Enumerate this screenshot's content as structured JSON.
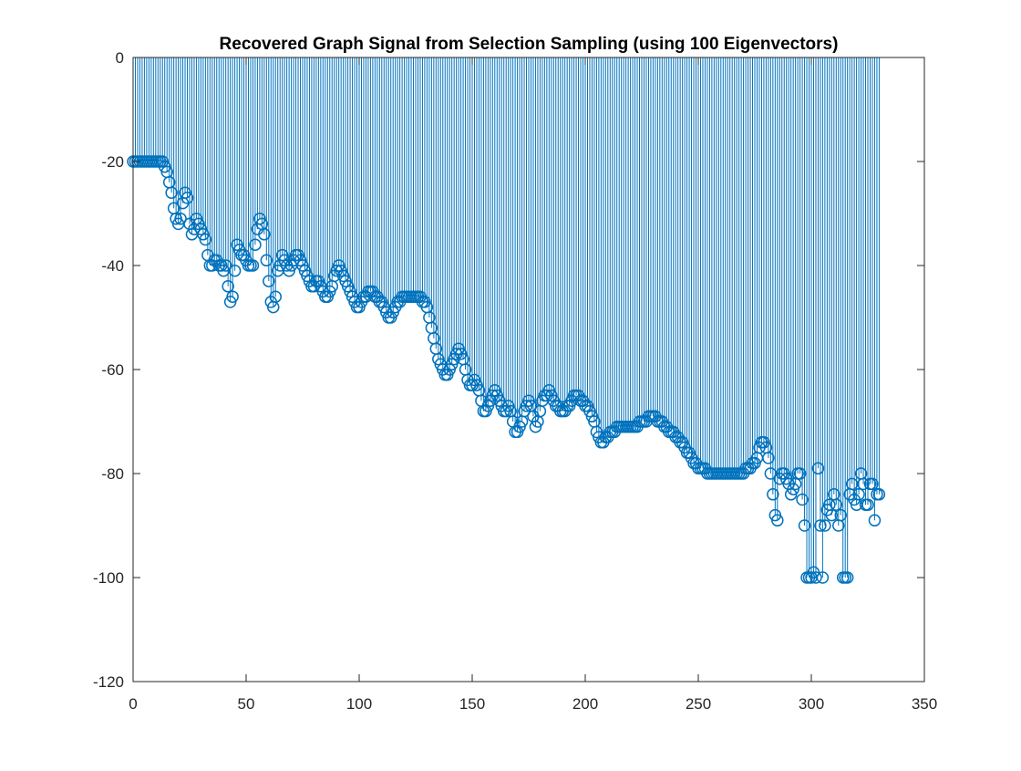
{
  "chart_data": {
    "type": "stem",
    "title": "Recovered Graph Signal from Selection Sampling (using 100 Eigenvectors)",
    "xlabel": "",
    "ylabel": "",
    "xlim": [
      0,
      350
    ],
    "ylim": [
      -120,
      0
    ],
    "xticks": [
      0,
      50,
      100,
      150,
      200,
      250,
      300,
      350
    ],
    "yticks": [
      0,
      -20,
      -40,
      -60,
      -80,
      -100,
      -120
    ],
    "xtick_labels": [
      "0",
      "50",
      "100",
      "150",
      "200",
      "250",
      "300",
      "350"
    ],
    "ytick_labels": [
      "0",
      "-20",
      "-40",
      "-60",
      "-80",
      "-100",
      "-120"
    ],
    "baseline": 0,
    "grid": false,
    "legend": "none",
    "color": "#0072BD",
    "x_start": 0,
    "values": [
      -20,
      -20,
      -20,
      -20,
      -20,
      -20,
      -20,
      -20,
      -20,
      -20,
      -20,
      -20,
      -20,
      -20,
      -21,
      -22,
      -24,
      -26,
      -29,
      -31,
      -32,
      -31,
      -28,
      -26,
      -27,
      -32,
      -34,
      -33,
      -31,
      -32,
      -33,
      -34,
      -35,
      -38,
      -40,
      -40,
      -39,
      -39,
      -40,
      -40,
      -41,
      -40,
      -44,
      -47,
      -46,
      -41,
      -36,
      -37,
      -38,
      -38,
      -39,
      -40,
      -40,
      -40,
      -36,
      -33,
      -31,
      -32,
      -34,
      -39,
      -43,
      -47,
      -48,
      -46,
      -41,
      -40,
      -38,
      -39,
      -40,
      -41,
      -40,
      -39,
      -38,
      -38,
      -39,
      -40,
      -41,
      -42,
      -43,
      -44,
      -44,
      -43,
      -43,
      -44,
      -45,
      -46,
      -46,
      -45,
      -44,
      -42,
      -41,
      -40,
      -41,
      -42,
      -43,
      -44,
      -45,
      -46,
      -47,
      -48,
      -48,
      -47,
      -46,
      -46,
      -45,
      -45,
      -45,
      -46,
      -46,
      -47,
      -47,
      -48,
      -49,
      -50,
      -50,
      -49,
      -48,
      -47,
      -47,
      -46,
      -46,
      -46,
      -46,
      -46,
      -46,
      -46,
      -46,
      -46,
      -47,
      -47,
      -48,
      -50,
      -52,
      -54,
      -56,
      -58,
      -59,
      -60,
      -61,
      -61,
      -60,
      -59,
      -58,
      -57,
      -56,
      -57,
      -58,
      -60,
      -62,
      -63,
      -63,
      -62,
      -63,
      -64,
      -66,
      -68,
      -68,
      -67,
      -66,
      -65,
      -64,
      -65,
      -66,
      -67,
      -68,
      -68,
      -67,
      -68,
      -70,
      -72,
      -72,
      -71,
      -70,
      -68,
      -67,
      -66,
      -67,
      -69,
      -71,
      -70,
      -68,
      -66,
      -65,
      -65,
      -64,
      -65,
      -66,
      -67,
      -67,
      -68,
      -68,
      -68,
      -67,
      -67,
      -66,
      -65,
      -65,
      -65,
      -66,
      -66,
      -67,
      -67,
      -68,
      -69,
      -70,
      -72,
      -73,
      -74,
      -74,
      -73,
      -73,
      -72,
      -72,
      -72,
      -71,
      -71,
      -71,
      -71,
      -71,
      -71,
      -71,
      -71,
      -71,
      -71,
      -70,
      -70,
      -70,
      -70,
      -69,
      -69,
      -69,
      -69,
      -70,
      -70,
      -70,
      -71,
      -71,
      -72,
      -72,
      -72,
      -73,
      -73,
      -74,
      -74,
      -75,
      -76,
      -76,
      -77,
      -78,
      -78,
      -79,
      -79,
      -79,
      -79,
      -80,
      -80,
      -80,
      -80,
      -80,
      -80,
      -80,
      -80,
      -80,
      -80,
      -80,
      -80,
      -80,
      -80,
      -80,
      -80,
      -80,
      -79,
      -79,
      -79,
      -78,
      -78,
      -77,
      -75,
      -74,
      -74,
      -75,
      -77,
      -80,
      -84,
      -88,
      -89,
      -81,
      -80,
      -80,
      -81,
      -82,
      -84,
      -83,
      -82,
      -80,
      -80,
      -85,
      -90,
      -100,
      -100,
      -100,
      -99,
      -100,
      -79,
      -90,
      -100,
      -90,
      -87,
      -86,
      -88,
      -84,
      -86,
      -90,
      -88,
      -100,
      -100,
      -100,
      -84,
      -82,
      -85,
      -86,
      -84,
      -80,
      -82,
      -86,
      -86,
      -82,
      -82,
      -89,
      -84,
      -84
    ]
  }
}
